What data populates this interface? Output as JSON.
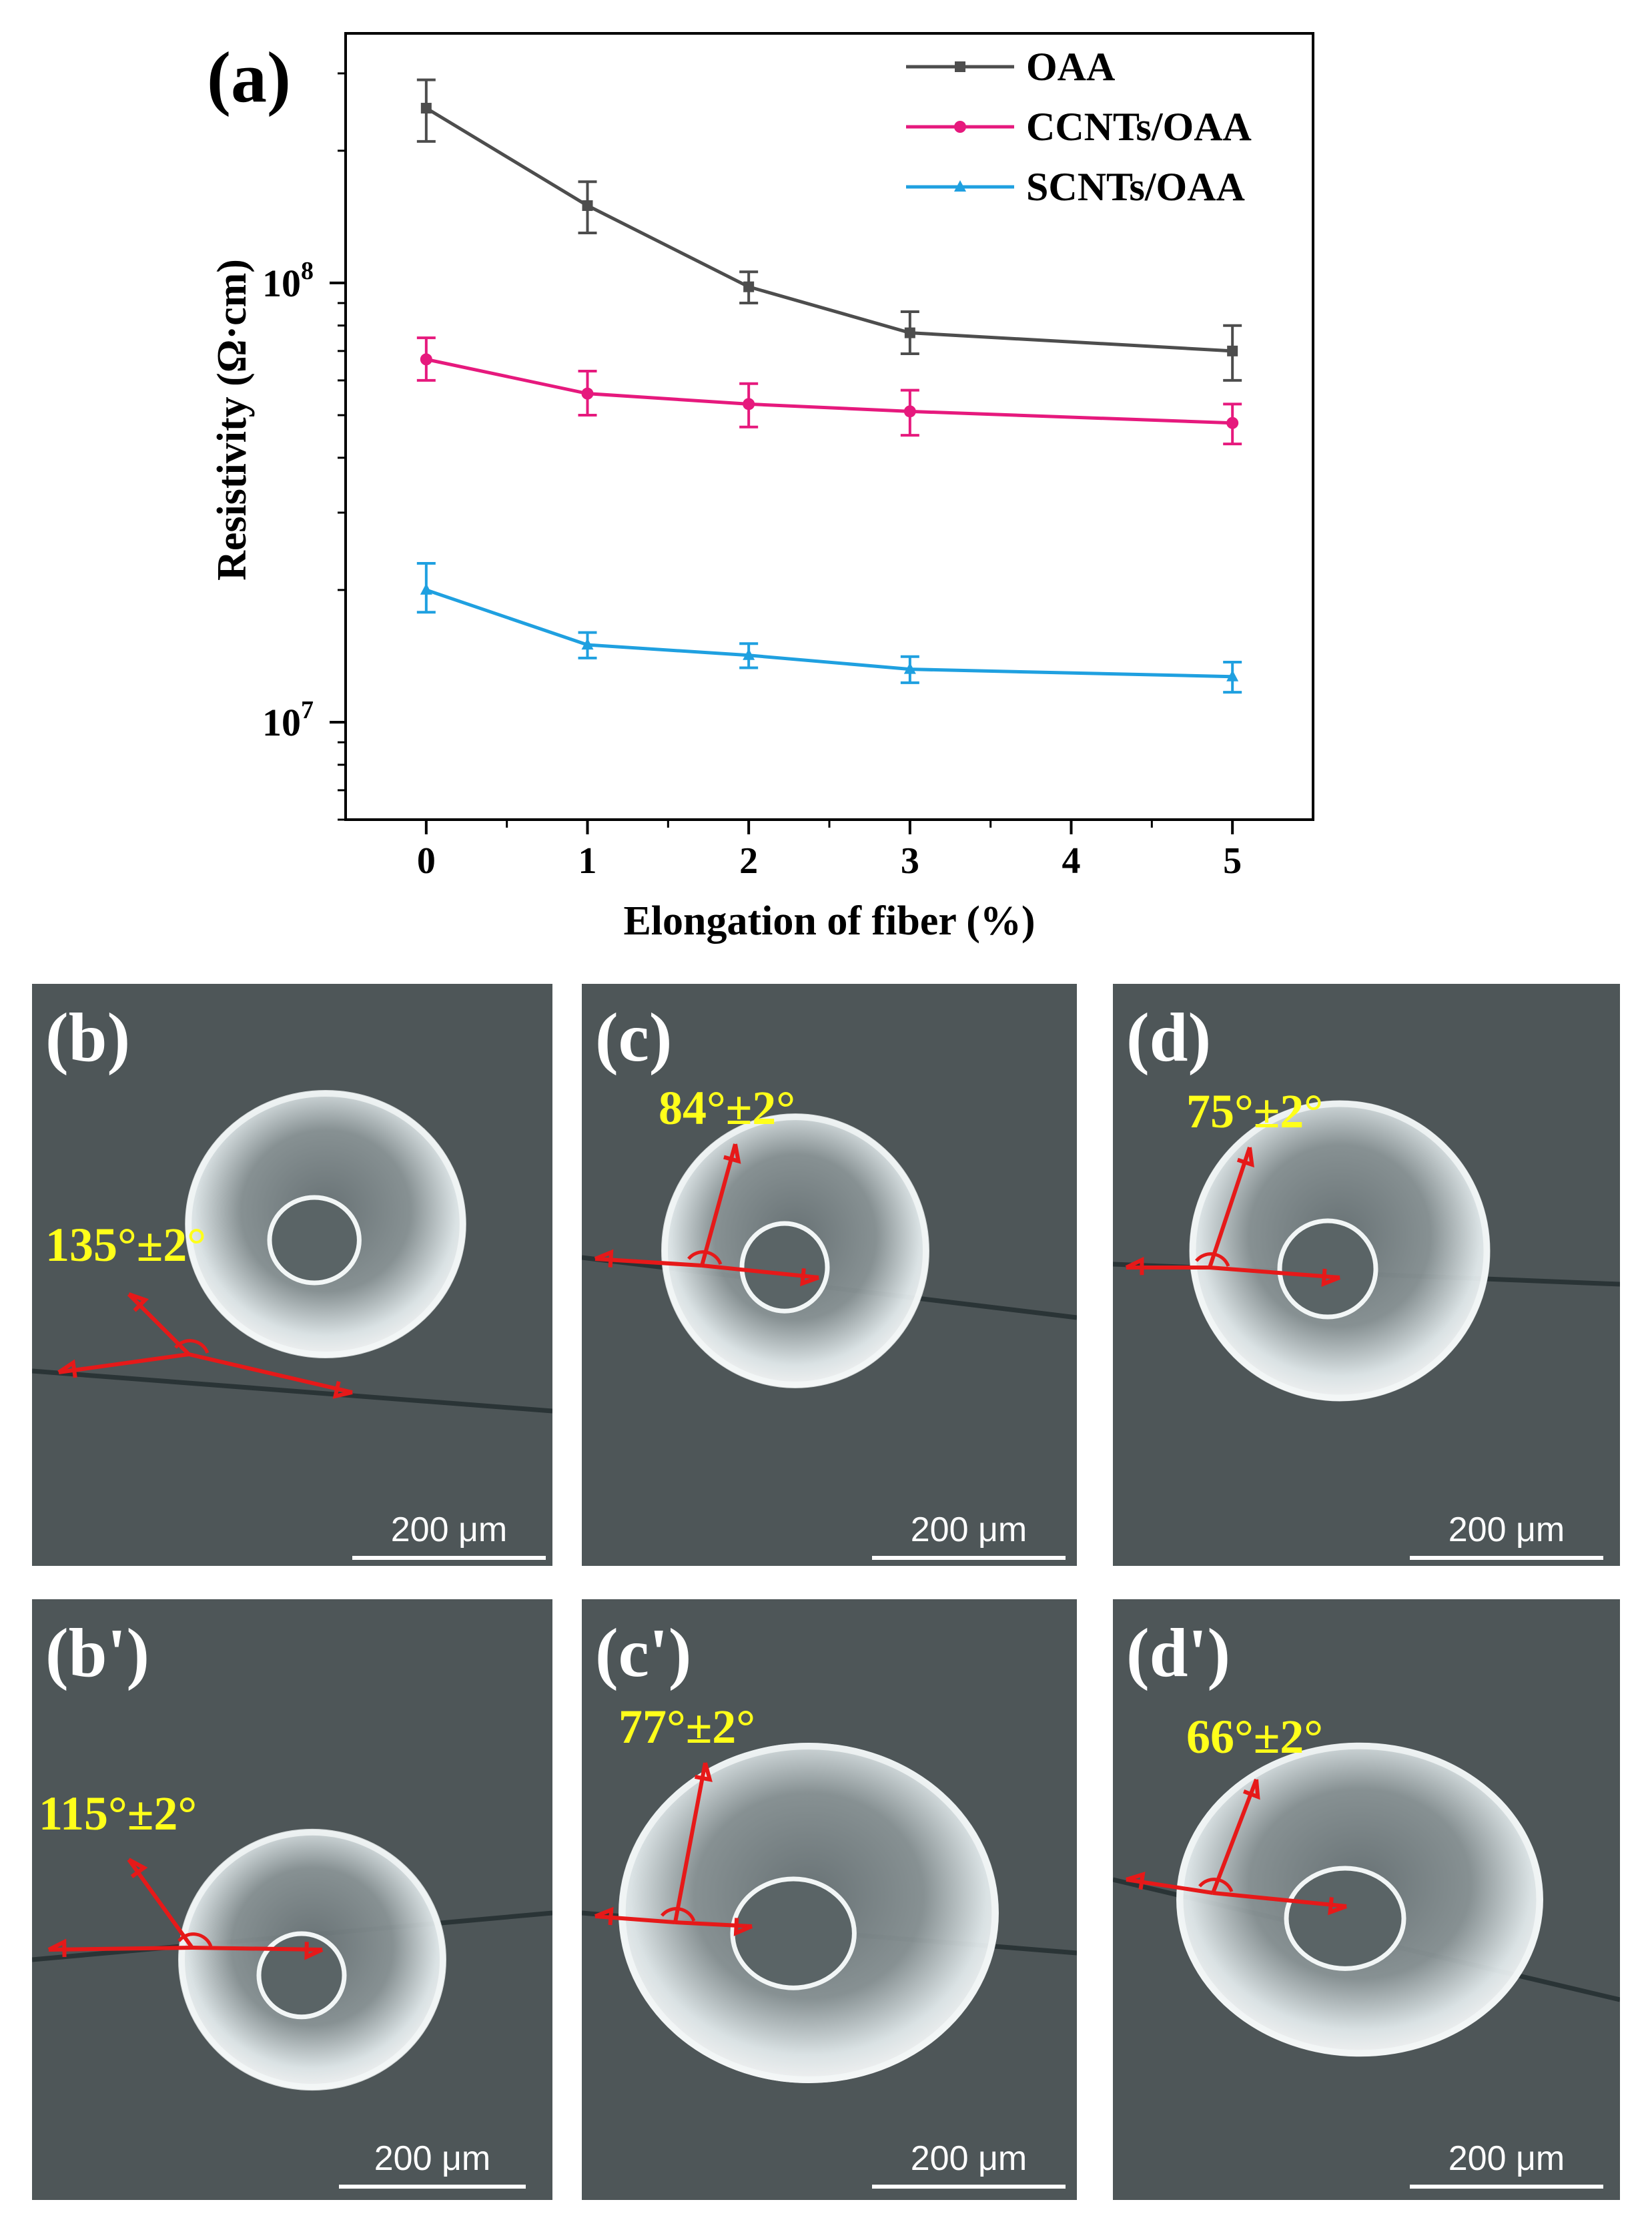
{
  "chart_data": {
    "type": "line",
    "panel_label": "(a)",
    "title": "",
    "xlabel": "Elongation of fiber (%)",
    "ylabel": "Resistivity (Ω·cm)",
    "x_scale": "linear",
    "y_scale": "log",
    "xlim": [
      -0.5,
      5.5
    ],
    "ylim": [
      6000000,
      370000000
    ],
    "x_ticks": [
      "0",
      "1",
      "2",
      "3",
      "4",
      "5"
    ],
    "y_ticks": [
      {
        "value": 10000000,
        "base": "10",
        "exp": "7"
      },
      {
        "value": 100000000,
        "base": "10",
        "exp": "8"
      }
    ],
    "legend_position": "top-right",
    "series": [
      {
        "name": "OAA",
        "color": "#4d4d4d",
        "marker": "square",
        "x": [
          0,
          1,
          2,
          3,
          5
        ],
        "values": [
          250000000,
          150000000,
          98000000,
          77000000,
          70000000
        ],
        "err_low": [
          210000000,
          130000000,
          90000000,
          69000000,
          60000000
        ],
        "err_high": [
          290000000,
          170000000,
          106000000,
          86000000,
          80000000
        ]
      },
      {
        "name": "CCNTs/OAA",
        "color": "#e6197d",
        "marker": "circle",
        "x": [
          0,
          1,
          2,
          3,
          5
        ],
        "values": [
          67000000,
          56000000,
          53000000,
          51000000,
          48000000
        ],
        "err_low": [
          60000000,
          50000000,
          47000000,
          45000000,
          43000000
        ],
        "err_high": [
          75000000,
          63000000,
          59000000,
          57000000,
          53000000
        ]
      },
      {
        "name": "SCNTs/OAA",
        "color": "#1fa0e0",
        "marker": "triangle",
        "x": [
          0,
          1,
          2,
          3,
          5
        ],
        "values": [
          20000000,
          15000000,
          14200000,
          13200000,
          12700000
        ],
        "err_low": [
          17800000,
          14000000,
          13300000,
          12300000,
          11700000
        ],
        "err_high": [
          23000000,
          16000000,
          15100000,
          14100000,
          13700000
        ]
      }
    ]
  },
  "photos": [
    {
      "label": "(b)",
      "angle": "135°±2°",
      "scale": "200 μm"
    },
    {
      "label": "(c)",
      "angle": "84°±2°",
      "scale": "200 μm"
    },
    {
      "label": "(d)",
      "angle": "75°±2°",
      "scale": "200 μm"
    },
    {
      "label": "(b')",
      "angle": "115°±2°",
      "scale": "200 μm"
    },
    {
      "label": "(c')",
      "angle": "77°±2°",
      "scale": "200 μm"
    },
    {
      "label": "(d')",
      "angle": "66°±2°",
      "scale": "200 μm"
    }
  ],
  "colors": {
    "angle_text": "#ffff1a",
    "arrow": "#e61919",
    "photo_bg": "#4e5658",
    "scale_text": "#ffffff"
  }
}
